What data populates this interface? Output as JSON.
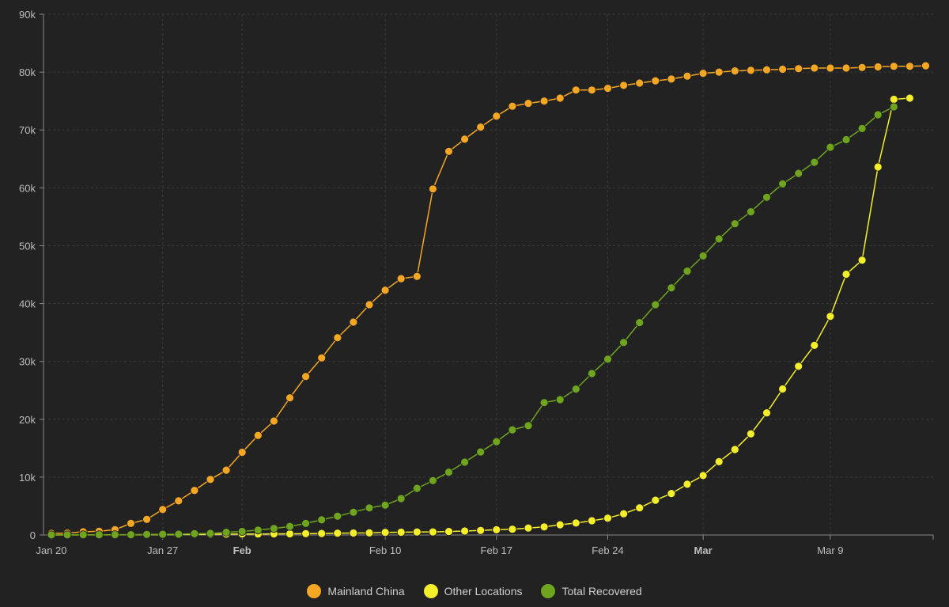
{
  "chart_data": {
    "type": "line",
    "title": "",
    "xlabel": "",
    "ylabel": "",
    "x_start": "2020-01-20",
    "x_ticks": [
      {
        "label": "Jan 20",
        "date": "2020-01-20",
        "bold": false
      },
      {
        "label": "Jan 27",
        "date": "2020-01-27",
        "bold": false
      },
      {
        "label": "Feb",
        "date": "2020-02-01",
        "bold": true
      },
      {
        "label": "Feb 10",
        "date": "2020-02-10",
        "bold": false
      },
      {
        "label": "Feb 17",
        "date": "2020-02-17",
        "bold": false
      },
      {
        "label": "Feb 24",
        "date": "2020-02-24",
        "bold": false
      },
      {
        "label": "Mar",
        "date": "2020-03-01",
        "bold": true
      },
      {
        "label": "Mar 9",
        "date": "2020-03-09",
        "bold": false
      }
    ],
    "y_ticks": [
      "0",
      "10k",
      "20k",
      "30k",
      "40k",
      "50k",
      "60k",
      "70k",
      "80k",
      "90k"
    ],
    "ylim": [
      0,
      90000
    ],
    "xlim": [
      "2020-01-20",
      "2020-03-16"
    ],
    "grid": true,
    "legend_position": "bottom-center",
    "series": [
      {
        "name": "Mainland China",
        "color": "#f5a623",
        "values": [
          278,
          326,
          547,
          639,
          916,
          2000,
          2700,
          4400,
          5900,
          7700,
          9600,
          11200,
          14300,
          17200,
          19700,
          23700,
          27400,
          30600,
          34100,
          36800,
          39800,
          42300,
          44300,
          44700,
          59800,
          66300,
          68400,
          70500,
          72400,
          74100,
          74600,
          75000,
          75500,
          76900,
          76900,
          77200,
          77700,
          78100,
          78500,
          78800,
          79300,
          79800,
          80000,
          80200,
          80300,
          80400,
          80500,
          80600,
          80700,
          80700,
          80700,
          80800,
          80900,
          81000,
          81000,
          81100
        ]
      },
      {
        "name": "Other Locations",
        "color": "#f5ee2b",
        "values": [
          4,
          6,
          8,
          14,
          25,
          40,
          57,
          64,
          87,
          105,
          118,
          153,
          173,
          183,
          188,
          212,
          227,
          265,
          317,
          343,
          361,
          457,
          476,
          523,
          538,
          595,
          685,
          780,
          896,
          999,
          1200,
          1400,
          1769,
          2069,
          2459,
          2918,
          3664,
          4691,
          6009,
          7169,
          8774,
          10277,
          12668,
          14768,
          17481,
          21110,
          25242,
          29155,
          32778,
          37780,
          45067,
          47500,
          63600,
          75300,
          75500
        ]
      },
      {
        "name": "Total Recovered",
        "color": "#6fa51e",
        "values": [
          28,
          30,
          36,
          39,
          49,
          58,
          101,
          120,
          135,
          214,
          275,
          463,
          614,
          843,
          1115,
          1477,
          1999,
          2616,
          3244,
          3946,
          4683,
          5150,
          6295,
          8058,
          9395,
          10865,
          12583,
          14352,
          16121,
          18177,
          18890,
          22886,
          23394,
          25227,
          27905,
          30384,
          33277,
          36711,
          39782,
          42716,
          45602,
          48228,
          51170,
          53796,
          55865,
          58359,
          60694,
          62494,
          64404,
          67003,
          68324,
          70251,
          72624,
          74000
        ]
      }
    ]
  }
}
